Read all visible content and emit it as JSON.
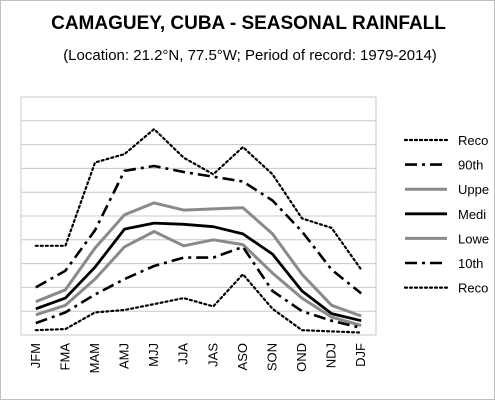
{
  "chart_data": {
    "type": "line",
    "title": "CAMAGUEY, CUBA - SEASONAL RAINFALL",
    "subtitle": "(Location: 21.2°N, 77.5°W; Period of record: 1979-2014)",
    "categories": [
      "JFM",
      "FMA",
      "MAM",
      "AMJ",
      "MJJ",
      "JJA",
      "JAS",
      "ASO",
      "SON",
      "OND",
      "NDJ",
      "DJF"
    ],
    "ylim": [
      0,
      1000
    ],
    "grid": true,
    "legend_position": "right",
    "series": [
      {
        "name": "Reco",
        "style": "dotted",
        "color": "#000000",
        "width": 2.2,
        "values": [
          375,
          375,
          725,
          760,
          865,
          745,
          675,
          790,
          675,
          490,
          450,
          275
        ]
      },
      {
        "name": "90th",
        "style": "dashdot",
        "color": "#000000",
        "width": 2.6,
        "values": [
          200,
          270,
          440,
          690,
          710,
          685,
          665,
          645,
          565,
          435,
          275,
          175
        ]
      },
      {
        "name": "Uppe",
        "style": "solid",
        "color": "#8a8a8a",
        "width": 3,
        "values": [
          140,
          190,
          365,
          505,
          555,
          525,
          530,
          535,
          425,
          255,
          125,
          80
        ]
      },
      {
        "name": "Medi",
        "style": "solid",
        "color": "#000000",
        "width": 2.8,
        "values": [
          110,
          155,
          285,
          445,
          470,
          465,
          455,
          425,
          340,
          185,
          90,
          60
        ]
      },
      {
        "name": "Lowe",
        "style": "solid",
        "color": "#8a8a8a",
        "width": 3,
        "values": [
          85,
          125,
          235,
          370,
          435,
          375,
          400,
          380,
          260,
          155,
          75,
          40
        ]
      },
      {
        "name": "10th",
        "style": "dashdot",
        "color": "#000000",
        "width": 2.6,
        "values": [
          50,
          95,
          170,
          235,
          290,
          325,
          325,
          370,
          185,
          100,
          60,
          30
        ]
      },
      {
        "name": "Reco",
        "style": "dotted",
        "color": "#000000",
        "width": 2.2,
        "values": [
          20,
          25,
          95,
          105,
          130,
          155,
          120,
          255,
          110,
          20,
          15,
          10
        ]
      }
    ]
  }
}
